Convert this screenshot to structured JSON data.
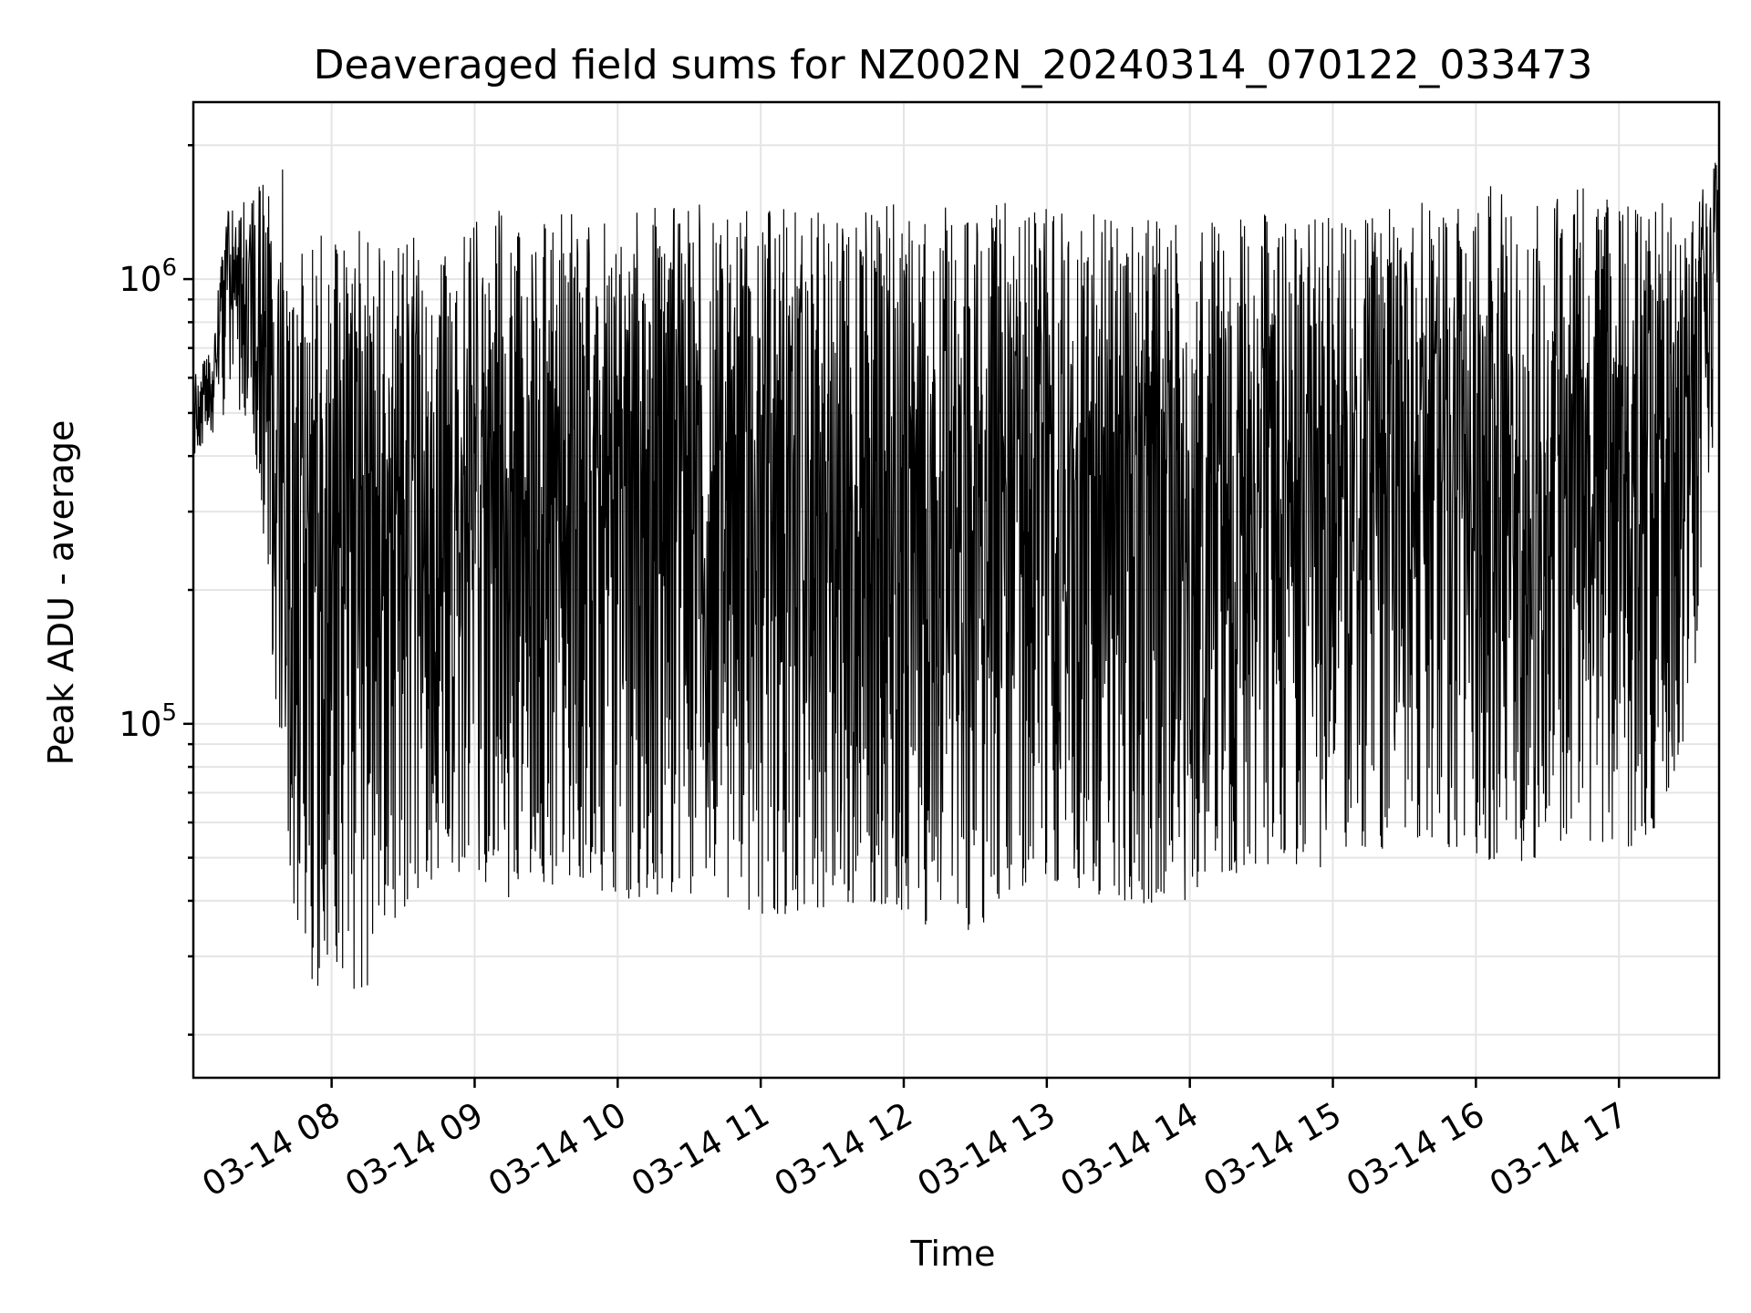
{
  "chart_data": {
    "type": "line",
    "title": "Deaveraged field sums for NZ002N_20240314_070122_033473",
    "xlabel": "Time",
    "ylabel": "Peak ADU - average",
    "yscale": "log",
    "xlim": [
      "2024-03-14 07:02",
      "2024-03-14 17:42"
    ],
    "ylim": [
      16000,
      2500000
    ],
    "grid": true,
    "line_color": "#000000",
    "x_ticks": [
      "03-14 08",
      "03-14 09",
      "03-14 10",
      "03-14 11",
      "03-14 12",
      "03-14 13",
      "03-14 14",
      "03-14 15",
      "03-14 16",
      "03-14 17"
    ],
    "y_ticks": [
      {
        "value": 100000,
        "base": "10",
        "exp": "5"
      },
      {
        "value": 1000000,
        "base": "10",
        "exp": "6"
      }
    ],
    "series": [
      {
        "x": [
          "2024-03-14 07:02",
          "2024-03-14 07:10",
          "2024-03-14 07:16",
          "2024-03-14 07:20",
          "2024-03-14 07:26",
          "2024-03-14 07:32",
          "2024-03-14 07:36",
          "2024-03-14 07:40",
          "2024-03-14 07:44",
          "2024-03-14 07:48",
          "2024-03-14 07:55",
          "2024-03-14 08:00",
          "2024-03-14 08:05",
          "2024-03-14 08:13",
          "2024-03-14 08:20",
          "2024-03-14 08:30",
          "2024-03-14 08:45",
          "2024-03-14 09:00",
          "2024-03-14 09:20",
          "2024-03-14 09:45",
          "2024-03-14 10:00",
          "2024-03-14 10:25",
          "2024-03-14 10:45",
          "2024-03-14 11:00",
          "2024-03-14 11:20",
          "2024-03-14 11:45",
          "2024-03-14 12:00",
          "2024-03-14 12:25",
          "2024-03-14 12:45",
          "2024-03-14 13:00",
          "2024-03-14 13:30",
          "2024-03-14 13:55",
          "2024-03-14 14:15",
          "2024-03-14 14:40",
          "2024-03-14 15:00",
          "2024-03-14 15:20",
          "2024-03-14 15:40",
          "2024-03-14 16:00",
          "2024-03-14 16:20",
          "2024-03-14 16:45",
          "2024-03-14 17:05",
          "2024-03-14 17:15",
          "2024-03-14 17:30",
          "2024-03-14 17:42"
        ],
        "high": [
          600000,
          700000,
          1500000,
          1400000,
          1600000,
          1700000,
          1600000,
          1900000,
          1400000,
          1300000,
          1300000,
          1300000,
          1250000,
          1300000,
          1200000,
          1300000,
          1350000,
          1400000,
          1450000,
          1450000,
          1450000,
          1450000,
          1500000,
          1450000,
          1450000,
          1450000,
          1500000,
          1450000,
          1500000,
          1450000,
          1400000,
          1350000,
          1400000,
          1400000,
          1450000,
          1450000,
          1600000,
          1700000,
          1500000,
          1600000,
          1600000,
          1500000,
          1450000,
          2000000
        ],
        "low": [
          400000,
          450000,
          500000,
          480000,
          500000,
          250000,
          110000,
          65000,
          40000,
          30000,
          24000,
          30000,
          28000,
          20000,
          30000,
          38000,
          45000,
          42000,
          40000,
          45000,
          40000,
          42000,
          40000,
          35000,
          38000,
          40000,
          38000,
          30000,
          42000,
          45000,
          40000,
          38000,
          45000,
          48000,
          47000,
          52000,
          55000,
          50000,
          48000,
          55000,
          52000,
          58000,
          100000,
          600000
        ]
      }
    ]
  }
}
